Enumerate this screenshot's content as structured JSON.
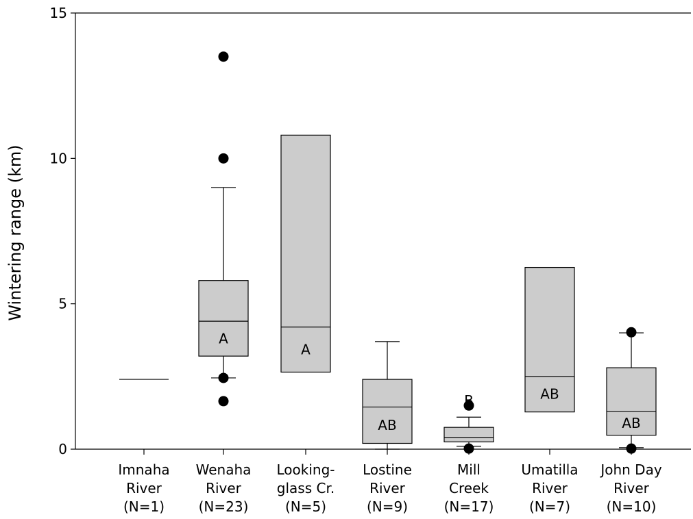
{
  "chart_data": {
    "type": "box",
    "title": "",
    "xlabel": "",
    "ylabel": "Wintering range (km)",
    "ylim": [
      0,
      15
    ],
    "yticks": [
      "0",
      "5",
      "10",
      "15"
    ],
    "grid": false,
    "box_color": "#cccccc",
    "categories": [
      {
        "lines": [
          "Imnaha",
          "River",
          "(N=1)"
        ],
        "n": "1",
        "median": 2.4,
        "q1": 2.4,
        "q3": 2.4,
        "whisker_low": null,
        "whisker_high": null,
        "outliers": [],
        "group": ""
      },
      {
        "lines": [
          "Wenaha",
          "River",
          "(N=23)"
        ],
        "n": "23",
        "median": 4.4,
        "q1": 3.2,
        "q3": 5.8,
        "whisker_low": 2.45,
        "whisker_high": 9.0,
        "outliers": [
          13.5,
          10.0,
          2.45,
          1.65
        ],
        "group": "A"
      },
      {
        "lines": [
          "Looking-",
          "glass Cr.",
          "(N=5)"
        ],
        "n": "5",
        "median": 4.2,
        "q1": 2.65,
        "q3": 10.8,
        "whisker_low": null,
        "whisker_high": null,
        "outliers": [],
        "group": "A"
      },
      {
        "lines": [
          "Lostine",
          "River",
          "(N=9)"
        ],
        "n": "9",
        "median": 1.45,
        "q1": 0.2,
        "q3": 2.4,
        "whisker_low": 0.0,
        "whisker_high": 3.7,
        "outliers": [],
        "group": "AB"
      },
      {
        "lines": [
          "Mill",
          "Creek",
          "(N=17)"
        ],
        "n": "17",
        "median": 0.4,
        "q1": 0.25,
        "q3": 0.75,
        "whisker_low": 0.1,
        "whisker_high": 1.1,
        "outliers": [
          1.5,
          0.02
        ],
        "group": "B"
      },
      {
        "lines": [
          "Umatilla",
          "River",
          "(N=7)"
        ],
        "n": "7",
        "median": 2.5,
        "q1": 1.28,
        "q3": 6.25,
        "whisker_low": null,
        "whisker_high": null,
        "outliers": [],
        "group": "AB"
      },
      {
        "lines": [
          "John Day",
          "River",
          "(N=10)"
        ],
        "n": "10",
        "median": 1.3,
        "q1": 0.48,
        "q3": 2.8,
        "whisker_low": 0.05,
        "whisker_high": 4.0,
        "outliers": [
          4.02,
          0.02
        ],
        "group": "AB"
      }
    ]
  }
}
